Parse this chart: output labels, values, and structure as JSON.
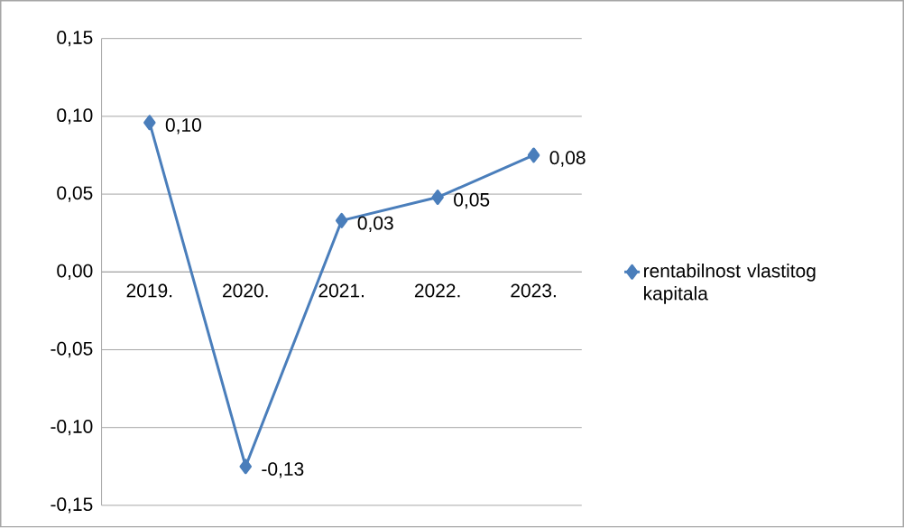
{
  "chart_data": {
    "type": "line",
    "categories": [
      "2019.",
      "2020.",
      "2021.",
      "2022.",
      "2023."
    ],
    "series": [
      {
        "name": "rentabilnost vlastitog kapitala",
        "color": "#4a7ebb",
        "values": [
          0.096,
          -0.125,
          0.033,
          0.048,
          0.075
        ],
        "value_labels": [
          "0,10",
          "-0,13",
          "0,03",
          "0,05",
          "0,08"
        ]
      }
    ],
    "ylim": [
      -0.15,
      0.15
    ],
    "yticks": [
      {
        "value": -0.15,
        "label": "-0,15"
      },
      {
        "value": -0.1,
        "label": "-0,10"
      },
      {
        "value": -0.05,
        "label": "-0,05"
      },
      {
        "value": 0,
        "label": "0,00"
      },
      {
        "value": 0.05,
        "label": "0,05"
      },
      {
        "value": 0.1,
        "label": "0,10"
      },
      {
        "value": 0.15,
        "label": "0,15"
      }
    ],
    "grid": "y",
    "legend": "right",
    "marker": "diamond",
    "line_style": "solid"
  }
}
